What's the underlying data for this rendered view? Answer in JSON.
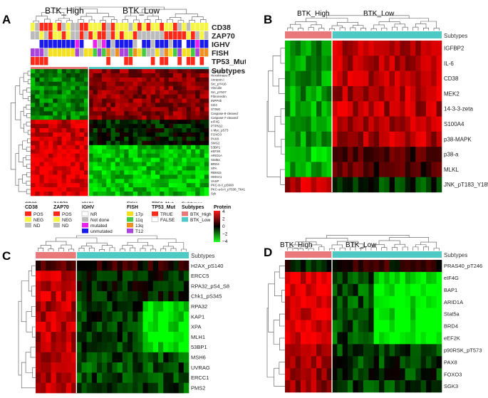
{
  "panels": {
    "A": {
      "letter": "A",
      "group_labels": [
        "BTK_High",
        "BTK_Low"
      ],
      "track_labels": [
        "CD38",
        "ZAP70",
        "IGHV",
        "FISH",
        "TP53_Mut",
        "Subtypes"
      ],
      "proteins": [
        "Cyclin-D1",
        "Hexokinase-II",
        "Annexin-I",
        "Src_pY416",
        "Vinculin",
        "Src_pY527",
        "Fibronectin",
        "INPP4b",
        "CD4",
        "STING",
        "Caspase-8-cleaved",
        "Caspase-7-cleaved",
        "eIF4G",
        "PTPN12",
        "c-Myc_pS73",
        "FOXO3",
        "PAX8",
        "SMG2",
        "53BP1",
        "eEF2K",
        "ARID1A",
        "Stat5a",
        "BRD4",
        "XPA",
        "RBM15",
        "HMHA1",
        "VASP",
        "PKC-b-II_pS660",
        "PKC-a-b-II_pT638_T641",
        "Syk"
      ],
      "legend": {
        "CD38": {
          "title": "CD38",
          "items": [
            "POS",
            "NEG",
            "ND"
          ],
          "colors": [
            "#ff2a1a",
            "#f5f542",
            "#bbbbbb"
          ]
        },
        "ZAP70": {
          "title": "ZAP70",
          "items": [
            "POS",
            "NEG",
            "ND"
          ],
          "colors": [
            "#ff2a1a",
            "#f5f542",
            "#bbbbbb"
          ]
        },
        "IGHV": {
          "title": "IGHV",
          "items": [
            "NR",
            "Not done",
            "mutated",
            "unmutated"
          ],
          "colors": [
            "#ffffff",
            "#bbbbbb",
            "#ee22ee",
            "#1a1aee"
          ]
        },
        "FISH": {
          "title": "FISH",
          "items": [
            "17p",
            "11q",
            "13q",
            "T12"
          ],
          "colors": [
            "#f5e020",
            "#44cc44",
            "#f09020",
            "#aa44dd"
          ]
        },
        "TP53_Mut": {
          "title": "TP53_Mut",
          "items": [
            "TRUE",
            "FALSE"
          ],
          "colors": [
            "#ff2a1a",
            "#ffffff"
          ]
        },
        "Subtypes": {
          "title": "Subtypes",
          "items": [
            "BTK_High",
            "BTK_Low"
          ],
          "colors": [
            "#e8787a",
            "#4fc9c3"
          ]
        },
        "Protein": {
          "title": "Protein",
          "ticks": [
            "4",
            "2",
            "0",
            "−2",
            "−4"
          ]
        }
      }
    },
    "B": {
      "letter": "B",
      "group_labels": [
        "BTK_High",
        "BTK_Low"
      ],
      "track_label": "Subtypes",
      "proteins": [
        "IGFBP2",
        "IL-6",
        "CD38",
        "MEK2",
        "14-3-3-zeta",
        "S100A4",
        "p38-MAPK",
        "p38-a",
        "MLKL",
        "JNK_pT183_Y185"
      ]
    },
    "C": {
      "letter": "C",
      "track_label": "Subtypes",
      "proteins": [
        "H2AX_pS140",
        "ERCC5",
        "RPA32_pS4_S8",
        "Chk1_pS345",
        "RPA32",
        "KAP1",
        "XPA",
        "MLH1",
        "53BP1",
        "MSH6",
        "UVRAG",
        "ERCC1",
        "PMS2"
      ]
    },
    "D": {
      "letter": "D",
      "group_labels": [
        "BTK_High",
        "BTK_Low"
      ],
      "track_label": "Subtypes",
      "proteins": [
        "PRAS40_pT246",
        "eIF4G",
        "BAP1",
        "ARID1A",
        "Stat5a",
        "BRD4",
        "eEF2K",
        "p90RSK_pT573",
        "PAX8",
        "FOXO3",
        "SGK3"
      ]
    }
  },
  "colors": {
    "high": "#ff1a1a",
    "mid": "#000000",
    "low": "#22ff22",
    "btk_high": "#e8787a",
    "btk_low": "#4fc9c3",
    "dendro": "#555555"
  }
}
